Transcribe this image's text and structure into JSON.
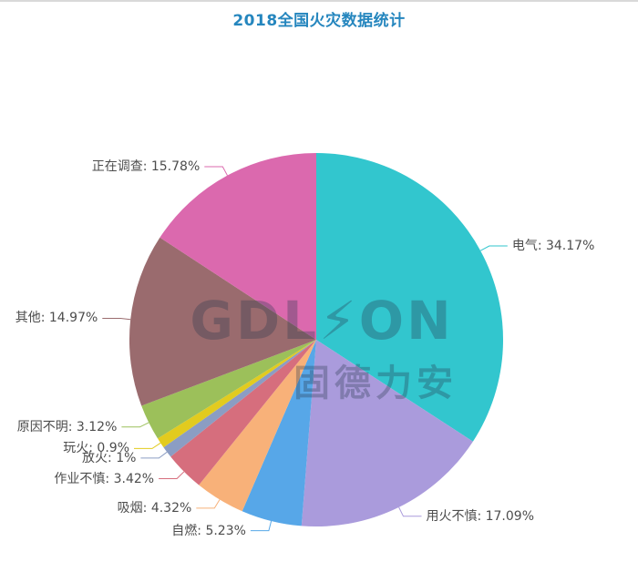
{
  "page": {
    "title": "2018全国火灾数据统计",
    "title_color": "#2586be"
  },
  "watermark": {
    "line1": "GDL⚡ON",
    "line2": "固德力安"
  },
  "chart_data": {
    "type": "pie",
    "title": "2018全国火灾数据统计",
    "unit": "%",
    "total": 100,
    "legend_position": "none",
    "label_format": "{name}: {value}%",
    "start_angle_deg_from_top": 0,
    "direction": "clockwise",
    "slices": [
      {
        "name": "电气",
        "value": 34.17,
        "color": "#32c6ce"
      },
      {
        "name": "用火不慎",
        "value": 17.09,
        "color": "#aa9bdc"
      },
      {
        "name": "自燃",
        "value": 5.23,
        "color": "#57a7e8"
      },
      {
        "name": "吸烟",
        "value": 4.32,
        "color": "#f8b179"
      },
      {
        "name": "作业不慎",
        "value": 3.42,
        "color": "#d66e7d"
      },
      {
        "name": "放火",
        "value": 1,
        "color": "#8b9dc3"
      },
      {
        "name": "玩火",
        "value": 0.9,
        "color": "#e2cb1f"
      },
      {
        "name": "原因不明",
        "value": 3.12,
        "color": "#9cc05a"
      },
      {
        "name": "其他",
        "value": 14.97,
        "color": "#9a6b6e"
      },
      {
        "name": "正在调查",
        "value": 15.78,
        "color": "#db69ae"
      }
    ]
  }
}
